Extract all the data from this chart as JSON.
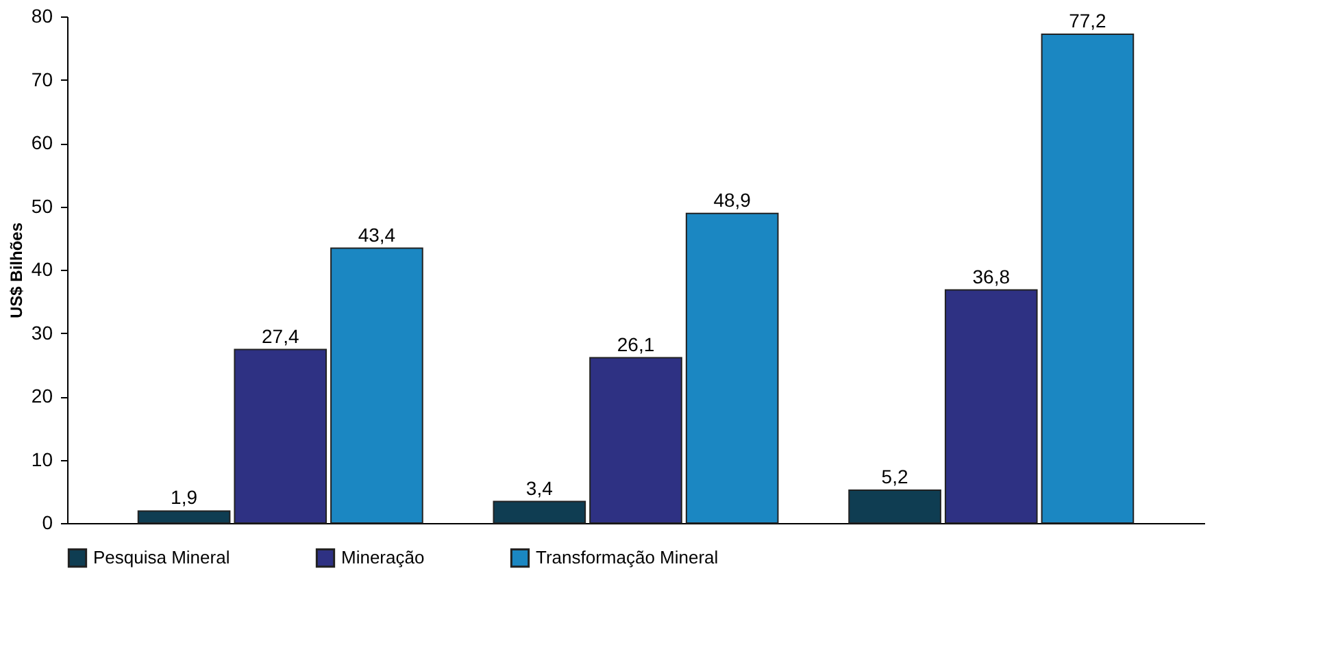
{
  "chart_data": {
    "type": "bar",
    "ylabel": "US$ Bilhões",
    "categories": [
      null,
      null,
      null
    ],
    "series": [
      {
        "name": "Pesquisa Mineral",
        "color": "#0f3d52",
        "values": [
          1.9,
          3.4,
          5.2
        ]
      },
      {
        "name": "Mineração",
        "color": "#2e3183",
        "values": [
          27.4,
          26.1,
          36.8
        ]
      },
      {
        "name": "Transformação Mineral",
        "color": "#1b87c2",
        "values": [
          43.4,
          48.9,
          77.2
        ]
      }
    ],
    "value_labels": [
      [
        "1,9",
        "3,4",
        "5,2"
      ],
      [
        "27,4",
        "26,1",
        "36,8"
      ],
      [
        "43,4",
        "48,9",
        "77,2"
      ]
    ],
    "ylim": [
      0,
      80
    ],
    "yticks": [
      0,
      10,
      20,
      30,
      40,
      50,
      60,
      70,
      80
    ],
    "grid": false,
    "legend": "bottom",
    "tick_labels": "y"
  }
}
